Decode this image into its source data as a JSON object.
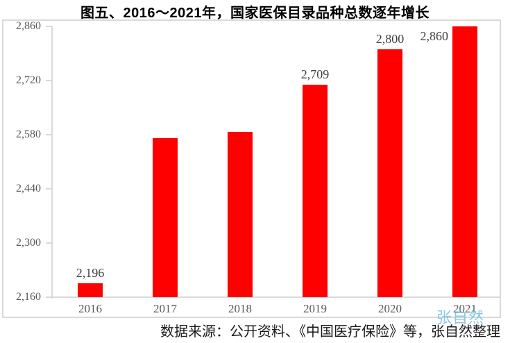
{
  "figure": {
    "title": "图五、2016～2021年，国家医保目录品种总数逐年增长",
    "caption": "数据来源：公开资料、《中国医疗保险》等，张自然整理",
    "watermark": "张自然"
  },
  "chart_data": {
    "type": "bar",
    "title": "图五、2016～2021年，国家医保目录品种总数逐年增长",
    "categories": [
      "2016",
      "2017",
      "2018",
      "2019",
      "2020",
      "2021"
    ],
    "values": [
      2196,
      2571,
      2588,
      2709,
      2800,
      2860
    ],
    "data_labels": [
      "2,196",
      "",
      "",
      "2,709",
      "2,800",
      "2,860"
    ],
    "data_label_positions": [
      "above",
      "",
      "",
      "above",
      "above",
      "left-of-bar"
    ],
    "y_ticks": [
      {
        "value": 2160,
        "label": "2,160"
      },
      {
        "value": 2300,
        "label": "2,300"
      },
      {
        "value": 2440,
        "label": "2,440"
      },
      {
        "value": 2580,
        "label": "2,580"
      },
      {
        "value": 2720,
        "label": "2,720"
      },
      {
        "value": 2860,
        "label": "2,860"
      }
    ],
    "ylim": [
      2160,
      2860
    ],
    "xlabel": "",
    "ylabel": "",
    "grid": false,
    "legend": false,
    "bar_color": "#fe0000",
    "axis_color": "#d9d9d9",
    "tick_label_color": "#595959",
    "data_label_color": "#404040",
    "watermark_color": "#7cc3e6",
    "source_note": "数据来源：公开资料、《中国医疗保险》等，张自然整理"
  }
}
